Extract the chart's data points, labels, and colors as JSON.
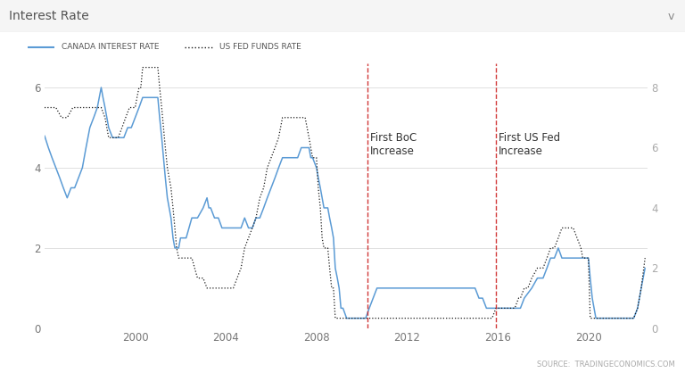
{
  "title": "Interest Rate",
  "legend_canada": "CANADA INTEREST RATE",
  "legend_us": "US FED FUNDS RATE",
  "source_text": "SOURCE:  TRADINGECONOMICS.COM",
  "annotation_boc": "First BoC\nIncrease",
  "annotation_us": "First US Fed\nIncrease",
  "boc_line_x": 2010.25,
  "us_line_x": 2015.92,
  "canada_color": "#5b9bd5",
  "us_color": "#1a1a1a",
  "background_color": "#f7f7f7",
  "plot_bg_color": "#ffffff",
  "ylim_left": [
    0,
    6.6
  ],
  "ylim_right": [
    0,
    8.8
  ],
  "yticks_left": [
    0,
    2,
    4,
    6
  ],
  "yticks_right": [
    0,
    2,
    4,
    6,
    8
  ],
  "xlim": [
    1996.0,
    2022.6
  ],
  "xticks": [
    2000,
    2004,
    2008,
    2012,
    2016,
    2020
  ],
  "canada_data": [
    [
      1996.0,
      4.8
    ],
    [
      1996.17,
      4.5
    ],
    [
      1996.33,
      4.25
    ],
    [
      1996.5,
      4.0
    ],
    [
      1996.67,
      3.75
    ],
    [
      1996.83,
      3.5
    ],
    [
      1997.0,
      3.25
    ],
    [
      1997.17,
      3.5
    ],
    [
      1997.33,
      3.5
    ],
    [
      1997.5,
      3.75
    ],
    [
      1997.67,
      4.0
    ],
    [
      1997.83,
      4.5
    ],
    [
      1998.0,
      5.0
    ],
    [
      1998.17,
      5.25
    ],
    [
      1998.33,
      5.5
    ],
    [
      1998.5,
      6.0
    ],
    [
      1998.58,
      5.75
    ],
    [
      1998.67,
      5.5
    ],
    [
      1998.75,
      5.25
    ],
    [
      1998.83,
      5.0
    ],
    [
      1999.0,
      4.75
    ],
    [
      1999.17,
      4.75
    ],
    [
      1999.33,
      4.75
    ],
    [
      1999.5,
      4.75
    ],
    [
      1999.67,
      5.0
    ],
    [
      1999.83,
      5.0
    ],
    [
      2000.0,
      5.25
    ],
    [
      2000.17,
      5.5
    ],
    [
      2000.33,
      5.75
    ],
    [
      2000.5,
      5.75
    ],
    [
      2000.67,
      5.75
    ],
    [
      2000.83,
      5.75
    ],
    [
      2001.0,
      5.75
    ],
    [
      2001.08,
      5.25
    ],
    [
      2001.17,
      4.75
    ],
    [
      2001.25,
      4.25
    ],
    [
      2001.33,
      3.75
    ],
    [
      2001.42,
      3.25
    ],
    [
      2001.5,
      3.0
    ],
    [
      2001.58,
      2.75
    ],
    [
      2001.67,
      2.25
    ],
    [
      2001.75,
      2.0
    ],
    [
      2001.92,
      2.0
    ],
    [
      2002.0,
      2.25
    ],
    [
      2002.25,
      2.25
    ],
    [
      2002.5,
      2.75
    ],
    [
      2002.75,
      2.75
    ],
    [
      2003.0,
      3.0
    ],
    [
      2003.17,
      3.25
    ],
    [
      2003.25,
      3.0
    ],
    [
      2003.33,
      3.0
    ],
    [
      2003.5,
      2.75
    ],
    [
      2003.67,
      2.75
    ],
    [
      2003.83,
      2.5
    ],
    [
      2004.0,
      2.5
    ],
    [
      2004.17,
      2.5
    ],
    [
      2004.33,
      2.5
    ],
    [
      2004.5,
      2.5
    ],
    [
      2004.67,
      2.5
    ],
    [
      2004.83,
      2.75
    ],
    [
      2005.0,
      2.5
    ],
    [
      2005.17,
      2.5
    ],
    [
      2005.33,
      2.75
    ],
    [
      2005.5,
      2.75
    ],
    [
      2005.67,
      3.0
    ],
    [
      2005.83,
      3.25
    ],
    [
      2006.0,
      3.5
    ],
    [
      2006.17,
      3.75
    ],
    [
      2006.33,
      4.0
    ],
    [
      2006.5,
      4.25
    ],
    [
      2006.67,
      4.25
    ],
    [
      2006.83,
      4.25
    ],
    [
      2007.0,
      4.25
    ],
    [
      2007.17,
      4.25
    ],
    [
      2007.33,
      4.5
    ],
    [
      2007.5,
      4.5
    ],
    [
      2007.67,
      4.5
    ],
    [
      2007.75,
      4.25
    ],
    [
      2007.83,
      4.25
    ],
    [
      2008.0,
      4.0
    ],
    [
      2008.08,
      3.75
    ],
    [
      2008.17,
      3.5
    ],
    [
      2008.25,
      3.25
    ],
    [
      2008.33,
      3.0
    ],
    [
      2008.42,
      3.0
    ],
    [
      2008.5,
      3.0
    ],
    [
      2008.58,
      2.75
    ],
    [
      2008.67,
      2.5
    ],
    [
      2008.75,
      2.25
    ],
    [
      2008.83,
      1.5
    ],
    [
      2008.92,
      1.25
    ],
    [
      2009.0,
      1.0
    ],
    [
      2009.08,
      0.5
    ],
    [
      2009.17,
      0.5
    ],
    [
      2009.33,
      0.25
    ],
    [
      2009.5,
      0.25
    ],
    [
      2009.67,
      0.25
    ],
    [
      2010.0,
      0.25
    ],
    [
      2010.17,
      0.25
    ],
    [
      2010.33,
      0.5
    ],
    [
      2010.5,
      0.75
    ],
    [
      2010.67,
      1.0
    ],
    [
      2010.83,
      1.0
    ],
    [
      2011.0,
      1.0
    ],
    [
      2011.25,
      1.0
    ],
    [
      2011.5,
      1.0
    ],
    [
      2011.75,
      1.0
    ],
    [
      2012.0,
      1.0
    ],
    [
      2012.25,
      1.0
    ],
    [
      2012.5,
      1.0
    ],
    [
      2012.75,
      1.0
    ],
    [
      2013.0,
      1.0
    ],
    [
      2013.25,
      1.0
    ],
    [
      2013.5,
      1.0
    ],
    [
      2013.75,
      1.0
    ],
    [
      2014.0,
      1.0
    ],
    [
      2014.25,
      1.0
    ],
    [
      2014.5,
      1.0
    ],
    [
      2014.75,
      1.0
    ],
    [
      2015.0,
      1.0
    ],
    [
      2015.17,
      0.75
    ],
    [
      2015.33,
      0.75
    ],
    [
      2015.5,
      0.5
    ],
    [
      2015.75,
      0.5
    ],
    [
      2016.0,
      0.5
    ],
    [
      2016.25,
      0.5
    ],
    [
      2016.5,
      0.5
    ],
    [
      2016.75,
      0.5
    ],
    [
      2017.0,
      0.5
    ],
    [
      2017.17,
      0.75
    ],
    [
      2017.5,
      1.0
    ],
    [
      2017.75,
      1.25
    ],
    [
      2018.0,
      1.25
    ],
    [
      2018.17,
      1.5
    ],
    [
      2018.33,
      1.75
    ],
    [
      2018.5,
      1.75
    ],
    [
      2018.67,
      2.0
    ],
    [
      2018.83,
      1.75
    ],
    [
      2019.0,
      1.75
    ],
    [
      2019.25,
      1.75
    ],
    [
      2019.5,
      1.75
    ],
    [
      2019.75,
      1.75
    ],
    [
      2020.0,
      1.75
    ],
    [
      2020.08,
      1.25
    ],
    [
      2020.17,
      0.75
    ],
    [
      2020.25,
      0.5
    ],
    [
      2020.33,
      0.25
    ],
    [
      2020.5,
      0.25
    ],
    [
      2020.75,
      0.25
    ],
    [
      2021.0,
      0.25
    ],
    [
      2021.25,
      0.25
    ],
    [
      2021.5,
      0.25
    ],
    [
      2021.75,
      0.25
    ],
    [
      2022.0,
      0.25
    ],
    [
      2022.17,
      0.5
    ],
    [
      2022.33,
      1.0
    ],
    [
      2022.5,
      1.5
    ]
  ],
  "us_data": [
    [
      1996.0,
      5.5
    ],
    [
      1996.25,
      5.5
    ],
    [
      1996.5,
      5.5
    ],
    [
      1996.75,
      5.25
    ],
    [
      1997.0,
      5.25
    ],
    [
      1997.25,
      5.5
    ],
    [
      1997.5,
      5.5
    ],
    [
      1997.75,
      5.5
    ],
    [
      1998.0,
      5.5
    ],
    [
      1998.25,
      5.5
    ],
    [
      1998.5,
      5.5
    ],
    [
      1998.67,
      5.25
    ],
    [
      1998.75,
      5.0
    ],
    [
      1998.83,
      4.75
    ],
    [
      1999.0,
      4.75
    ],
    [
      1999.25,
      4.75
    ],
    [
      1999.42,
      5.0
    ],
    [
      1999.58,
      5.25
    ],
    [
      1999.75,
      5.5
    ],
    [
      2000.0,
      5.5
    ],
    [
      2000.08,
      5.75
    ],
    [
      2000.17,
      6.0
    ],
    [
      2000.25,
      6.0
    ],
    [
      2000.33,
      6.5
    ],
    [
      2000.5,
      6.5
    ],
    [
      2000.67,
      6.5
    ],
    [
      2000.83,
      6.5
    ],
    [
      2001.0,
      6.5
    ],
    [
      2001.08,
      6.0
    ],
    [
      2001.17,
      5.5
    ],
    [
      2001.25,
      5.0
    ],
    [
      2001.33,
      4.5
    ],
    [
      2001.42,
      4.0
    ],
    [
      2001.5,
      3.75
    ],
    [
      2001.58,
      3.5
    ],
    [
      2001.67,
      3.0
    ],
    [
      2001.75,
      2.5
    ],
    [
      2001.83,
      2.0
    ],
    [
      2001.92,
      1.75
    ],
    [
      2002.0,
      1.75
    ],
    [
      2002.25,
      1.75
    ],
    [
      2002.5,
      1.75
    ],
    [
      2002.75,
      1.25
    ],
    [
      2003.0,
      1.25
    ],
    [
      2003.17,
      1.0
    ],
    [
      2003.33,
      1.0
    ],
    [
      2003.5,
      1.0
    ],
    [
      2003.75,
      1.0
    ],
    [
      2004.0,
      1.0
    ],
    [
      2004.17,
      1.0
    ],
    [
      2004.33,
      1.0
    ],
    [
      2004.5,
      1.25
    ],
    [
      2004.67,
      1.5
    ],
    [
      2004.75,
      1.75
    ],
    [
      2004.83,
      2.0
    ],
    [
      2005.0,
      2.25
    ],
    [
      2005.17,
      2.5
    ],
    [
      2005.33,
      2.75
    ],
    [
      2005.5,
      3.25
    ],
    [
      2005.67,
      3.5
    ],
    [
      2005.75,
      3.75
    ],
    [
      2005.83,
      4.0
    ],
    [
      2006.0,
      4.25
    ],
    [
      2006.17,
      4.5
    ],
    [
      2006.33,
      4.75
    ],
    [
      2006.5,
      5.25
    ],
    [
      2006.67,
      5.25
    ],
    [
      2006.75,
      5.25
    ],
    [
      2006.83,
      5.25
    ],
    [
      2007.0,
      5.25
    ],
    [
      2007.17,
      5.25
    ],
    [
      2007.5,
      5.25
    ],
    [
      2007.67,
      4.75
    ],
    [
      2007.75,
      4.5
    ],
    [
      2007.83,
      4.25
    ],
    [
      2008.0,
      4.25
    ],
    [
      2008.08,
      3.5
    ],
    [
      2008.17,
      3.0
    ],
    [
      2008.25,
      2.25
    ],
    [
      2008.33,
      2.0
    ],
    [
      2008.5,
      2.0
    ],
    [
      2008.58,
      1.5
    ],
    [
      2008.67,
      1.0
    ],
    [
      2008.75,
      1.0
    ],
    [
      2008.83,
      0.25
    ],
    [
      2009.0,
      0.25
    ],
    [
      2009.25,
      0.25
    ],
    [
      2009.5,
      0.25
    ],
    [
      2009.75,
      0.25
    ],
    [
      2010.0,
      0.25
    ],
    [
      2010.25,
      0.25
    ],
    [
      2010.5,
      0.25
    ],
    [
      2010.75,
      0.25
    ],
    [
      2011.0,
      0.25
    ],
    [
      2011.25,
      0.25
    ],
    [
      2011.5,
      0.25
    ],
    [
      2011.75,
      0.25
    ],
    [
      2012.0,
      0.25
    ],
    [
      2012.25,
      0.25
    ],
    [
      2012.5,
      0.25
    ],
    [
      2012.75,
      0.25
    ],
    [
      2013.0,
      0.25
    ],
    [
      2013.25,
      0.25
    ],
    [
      2013.5,
      0.25
    ],
    [
      2013.75,
      0.25
    ],
    [
      2014.0,
      0.25
    ],
    [
      2014.25,
      0.25
    ],
    [
      2014.5,
      0.25
    ],
    [
      2014.75,
      0.25
    ],
    [
      2015.0,
      0.25
    ],
    [
      2015.25,
      0.25
    ],
    [
      2015.5,
      0.25
    ],
    [
      2015.75,
      0.25
    ],
    [
      2015.92,
      0.5
    ],
    [
      2016.0,
      0.5
    ],
    [
      2016.25,
      0.5
    ],
    [
      2016.5,
      0.5
    ],
    [
      2016.75,
      0.5
    ],
    [
      2016.92,
      0.75
    ],
    [
      2017.0,
      0.75
    ],
    [
      2017.17,
      1.0
    ],
    [
      2017.33,
      1.0
    ],
    [
      2017.5,
      1.25
    ],
    [
      2017.75,
      1.5
    ],
    [
      2018.0,
      1.5
    ],
    [
      2018.17,
      1.75
    ],
    [
      2018.33,
      2.0
    ],
    [
      2018.5,
      2.0
    ],
    [
      2018.67,
      2.25
    ],
    [
      2018.83,
      2.5
    ],
    [
      2019.0,
      2.5
    ],
    [
      2019.17,
      2.5
    ],
    [
      2019.33,
      2.5
    ],
    [
      2019.5,
      2.25
    ],
    [
      2019.67,
      2.0
    ],
    [
      2019.75,
      1.75
    ],
    [
      2020.0,
      1.75
    ],
    [
      2020.08,
      0.25
    ],
    [
      2020.25,
      0.25
    ],
    [
      2020.5,
      0.25
    ],
    [
      2020.75,
      0.25
    ],
    [
      2021.0,
      0.25
    ],
    [
      2021.25,
      0.25
    ],
    [
      2021.5,
      0.25
    ],
    [
      2021.75,
      0.25
    ],
    [
      2022.0,
      0.25
    ],
    [
      2022.17,
      0.5
    ],
    [
      2022.33,
      1.0
    ],
    [
      2022.5,
      1.75
    ]
  ]
}
